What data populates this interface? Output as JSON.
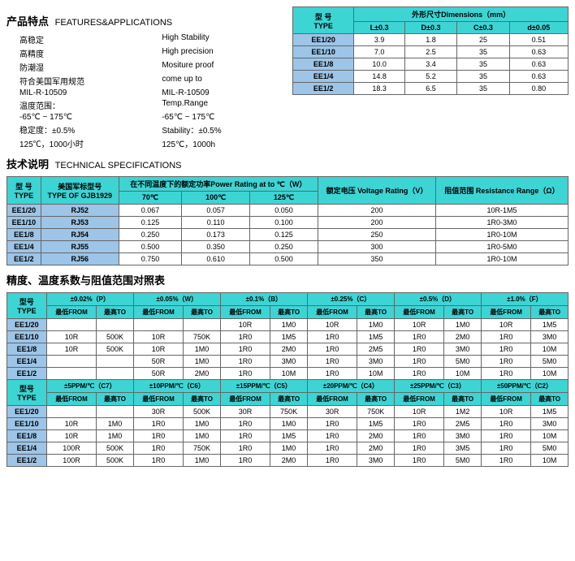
{
  "sections": {
    "features_title_cn": "产品特点",
    "features_title_en": "FEATURES&APPLICATIONS",
    "tech_title_cn": "技术说明",
    "tech_title_en": "TECHNICAL SPECIFICATIONS",
    "tol_title": "精度、温度系数与阻值范围对照表"
  },
  "features": {
    "rows": [
      {
        "cn": "高稳定",
        "en": "High Stability"
      },
      {
        "cn": "高精度",
        "en": "High precision"
      },
      {
        "cn": "防潮湿",
        "en": "Mositure proof"
      },
      {
        "cn": "符合美国军用规范",
        "en": "come up to"
      },
      {
        "cn": "MIL-R-10509",
        "en": "MIL-R-10509"
      },
      {
        "cn": "温度范围：",
        "en": "Temp.Range"
      },
      {
        "cn": "-65℃ ~ 175℃",
        "en": "-65℃ ~ 175℃"
      },
      {
        "cn": "稳定度：±0.5%",
        "en": "Stability：±0.5%"
      },
      {
        "cn": "125℃，1000小时",
        "en": "125℃，1000h"
      }
    ]
  },
  "dim": {
    "head_type_cn": "型 号",
    "head_type_en": "TYPE",
    "head_dim": "外形尺寸Dimensions（mm）",
    "cols": [
      "L±0.3",
      "D±0.3",
      "C±0.3",
      "d±0.05"
    ],
    "rows": [
      {
        "type": "EE1/20",
        "v": [
          "3.9",
          "1.8",
          "25",
          "0.51"
        ]
      },
      {
        "type": "EE1/10",
        "v": [
          "7.0",
          "2.5",
          "35",
          "0.63"
        ]
      },
      {
        "type": "EE1/8",
        "v": [
          "10.0",
          "3.4",
          "35",
          "0.63"
        ]
      },
      {
        "type": "EE1/4",
        "v": [
          "14.8",
          "5.2",
          "35",
          "0.63"
        ]
      },
      {
        "type": "EE1/2",
        "v": [
          "18.3",
          "6.5",
          "35",
          "0.80"
        ]
      }
    ]
  },
  "spec": {
    "head_type_cn": "型 号",
    "head_type_en": "TYPE",
    "head_gjb_cn": "美国军标型号",
    "head_gjb_en": "TYPE OF GJB1929",
    "head_power": "在不同温度下的额定功率Power Rating at to ℃（W）",
    "power_cols": [
      "70℃",
      "100℃",
      "125℃"
    ],
    "head_volt": "额定电压\nVoltage Rating（V）",
    "head_res": "阻值范围\nResistance Range（Ω）",
    "rows": [
      {
        "type": "EE1/20",
        "gjb": "RJ52",
        "p": [
          "0.067",
          "0.057",
          "0.050"
        ],
        "v": "200",
        "r": "10R-1M5"
      },
      {
        "type": "EE1/10",
        "gjb": "RJ53",
        "p": [
          "0.125",
          "0.110",
          "0.100"
        ],
        "v": "200",
        "r": "1R0-3M0"
      },
      {
        "type": "EE1/8",
        "gjb": "RJ54",
        "p": [
          "0.250",
          "0.173",
          "0.125"
        ],
        "v": "250",
        "r": "1R0-10M"
      },
      {
        "type": "EE1/4",
        "gjb": "RJ55",
        "p": [
          "0.500",
          "0.350",
          "0.250"
        ],
        "v": "300",
        "r": "1R0-5M0"
      },
      {
        "type": "EE1/2",
        "gjb": "RJ56",
        "p": [
          "0.750",
          "0.610",
          "0.500"
        ],
        "v": "350",
        "r": "1R0-10M"
      }
    ]
  },
  "tol": {
    "head_type_cn": "型号",
    "head_type_en": "TYPE",
    "from": "最低FROM",
    "to": "最高TO",
    "groups1": [
      "±0.02%（P）",
      "±0.05%（W）",
      "±0.1%（B）",
      "±0.25%（C）",
      "±0.5%（D）",
      "±1.0%（F）"
    ],
    "rows1": [
      {
        "type": "EE1/20",
        "c": [
          "",
          "",
          "",
          "",
          "10R",
          "1M0",
          "10R",
          "1M0",
          "10R",
          "1M0",
          "10R",
          "1M5"
        ]
      },
      {
        "type": "EE1/10",
        "c": [
          "10R",
          "500K",
          "10R",
          "750K",
          "1R0",
          "1M5",
          "1R0",
          "1M5",
          "1R0",
          "2M0",
          "1R0",
          "3M0"
        ]
      },
      {
        "type": "EE1/8",
        "c": [
          "10R",
          "500K",
          "10R",
          "1M0",
          "1R0",
          "2M0",
          "1R0",
          "2M5",
          "1R0",
          "3M0",
          "1R0",
          "10M"
        ]
      },
      {
        "type": "EE1/4",
        "c": [
          "",
          "",
          "50R",
          "1M0",
          "1R0",
          "3M0",
          "1R0",
          "3M0",
          "1R0",
          "5M0",
          "1R0",
          "5M0"
        ]
      },
      {
        "type": "EE1/2",
        "c": [
          "",
          "",
          "50R",
          "2M0",
          "1R0",
          "10M",
          "1R0",
          "10M",
          "1R0",
          "10M",
          "1R0",
          "10M"
        ]
      }
    ],
    "groups2": [
      "±5PPM/℃（C7）",
      "±10PPM/℃（C6）",
      "±15PPM/℃（C5）",
      "±20PPM/℃（C4）",
      "±25PPM/℃（C3）",
      "±50PPM/℃（C2）"
    ],
    "rows2": [
      {
        "type": "EE1/20",
        "c": [
          "",
          "",
          "30R",
          "500K",
          "30R",
          "750K",
          "30R",
          "750K",
          "10R",
          "1M2",
          "10R",
          "1M5"
        ]
      },
      {
        "type": "EE1/10",
        "c": [
          "10R",
          "1M0",
          "1R0",
          "1M0",
          "1R0",
          "1M0",
          "1R0",
          "1M5",
          "1R0",
          "2M5",
          "1R0",
          "3M0"
        ]
      },
      {
        "type": "EE1/8",
        "c": [
          "10R",
          "1M0",
          "1R0",
          "1M0",
          "1R0",
          "1M5",
          "1R0",
          "2M0",
          "1R0",
          "3M0",
          "1R0",
          "10M"
        ]
      },
      {
        "type": "EE1/4",
        "c": [
          "100R",
          "500K",
          "1R0",
          "750K",
          "1R0",
          "1M0",
          "1R0",
          "2M0",
          "1R0",
          "3M5",
          "1R0",
          "5M0"
        ]
      },
      {
        "type": "EE1/2",
        "c": [
          "100R",
          "500K",
          "1R0",
          "1M0",
          "1R0",
          "2M0",
          "1R0",
          "3M0",
          "1R0",
          "5M0",
          "1R0",
          "10M"
        ]
      }
    ]
  },
  "colors": {
    "cyan": "#3dd4d4",
    "blue": "#9cc5e8",
    "border": "#666666"
  }
}
